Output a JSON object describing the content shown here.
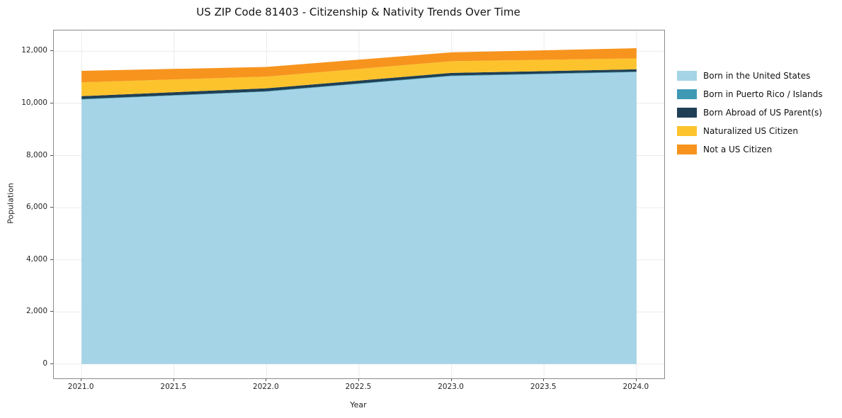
{
  "chart_data": {
    "type": "area",
    "stacked": true,
    "title": "US ZIP Code 81403 - Citizenship & Nativity Trends Over Time",
    "xlabel": "Year",
    "ylabel": "Population",
    "x": [
      2021,
      2022,
      2023,
      2024
    ],
    "series": [
      {
        "name": "Born in the United States",
        "color": "#a4d4e6",
        "values": [
          10150,
          10450,
          11050,
          11200
        ]
      },
      {
        "name": "Born in Puerto Rico / Islands",
        "color": "#3e99b5",
        "values": [
          20,
          20,
          20,
          20
        ]
      },
      {
        "name": "Born Abroad of US Parent(s)",
        "color": "#203f54",
        "values": [
          110,
          110,
          100,
          90
        ]
      },
      {
        "name": "Naturalized US Citizen",
        "color": "#fcc32d",
        "values": [
          530,
          450,
          450,
          420
        ]
      },
      {
        "name": "Not a US Citizen",
        "color": "#f7941e",
        "values": [
          440,
          370,
          340,
          390
        ]
      }
    ],
    "x_tick_values": [
      2021.0,
      2021.5,
      2022.0,
      2022.5,
      2023.0,
      2023.5,
      2024.0
    ],
    "x_tick_labels": [
      "2021.0",
      "2021.5",
      "2022.0",
      "2022.5",
      "2023.0",
      "2023.5",
      "2024.0"
    ],
    "y_tick_values": [
      0,
      2000,
      4000,
      6000,
      8000,
      10000,
      12000
    ],
    "y_tick_labels": [
      "0",
      "2,000",
      "4,000",
      "6,000",
      "8,000",
      "10,000",
      "12,000"
    ],
    "xlim": [
      2020.85,
      2024.15
    ],
    "ylim": [
      -550,
      12800
    ],
    "grid": true,
    "grid_color": "#ebebeb",
    "legend_position": "right"
  }
}
